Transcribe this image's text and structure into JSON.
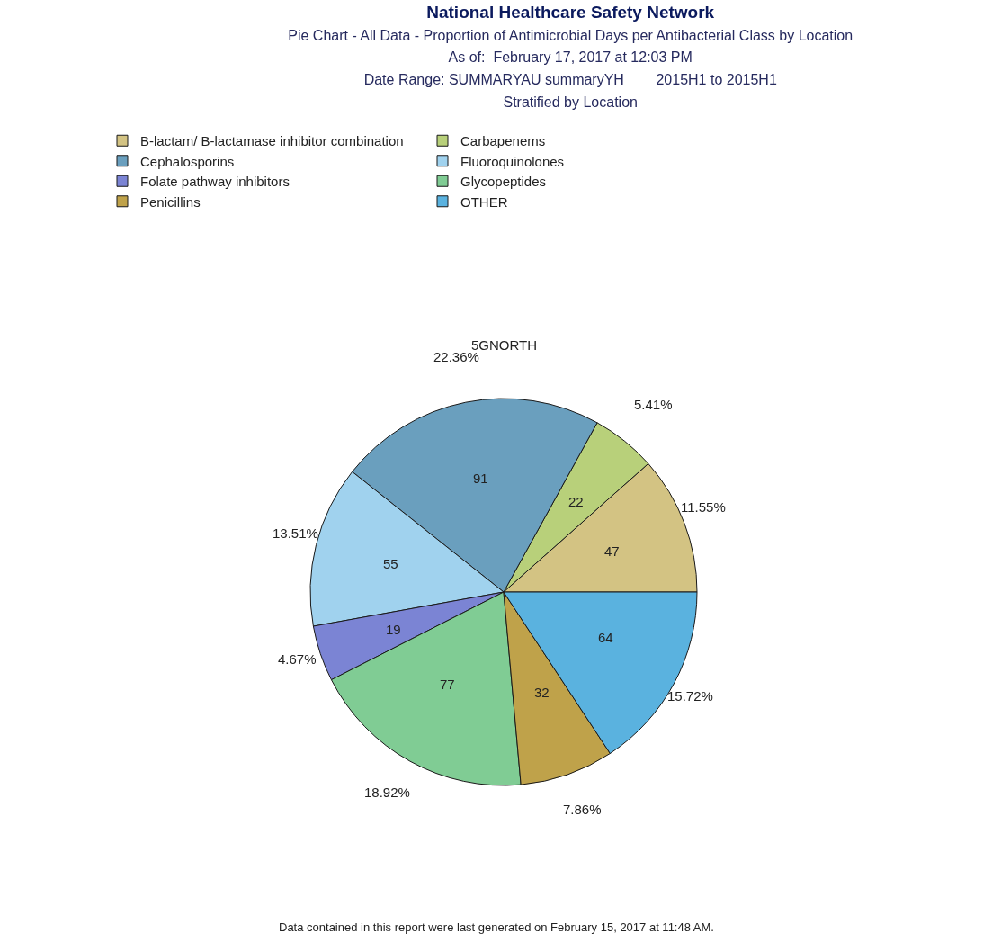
{
  "chart_data": {
    "type": "pie",
    "title": "National Healthcare Safety Network",
    "subtitle": "Pie Chart - All Data - Proportion of Antimicrobial Days per Antibacterial Class by Location\nAs of:  February 17, 2017 at 12:03 PM\nDate Range: SUMMARYAU summaryYH        2015H1 to 2015H1\nStratified by Location",
    "categories": [
      "B-lactam/ B-lactamase inhibitor combination",
      "Carbapenems",
      "Cephalosporins",
      "Fluoroquinolones",
      "Folate pathway inhibitors",
      "Glycopeptides",
      "Penicillins",
      "OTHER"
    ],
    "values": [
      11.55,
      5.41,
      22.36,
      13.51,
      4.67,
      18.92,
      7.86,
      15.72
    ],
    "colors": [
      "#d3c383",
      "#b8d07a",
      "#6a9fbe",
      "#a0d2ee",
      "#7b84d4",
      "#80cc94",
      "#bfa24a",
      "#5ab2df"
    ],
    "value_labels": [
      "11.55%",
      "5.41%",
      "22.36%",
      "13.51%",
      "4.67%",
      "18.92%",
      "7.86%",
      "15.72%"
    ],
    "legend": "top",
    "annotations": [
      "5GNORTH",
      "Data contained in this report were last generated on February 15, 2017 at 11:48 AM.",
      {
        "text": "47",
        "x": "B-lactam/ B-lactamase inhibitor combination"
      },
      {
        "text": "22",
        "x": "Carbapenems"
      },
      {
        "text": "91",
        "x": "Cephalosporins"
      },
      {
        "text": "55",
        "x": "Fluoroquinolones"
      },
      {
        "text": "19",
        "x": "Folate pathway inhibitors"
      },
      {
        "text": "77",
        "x": "Glycopeptides"
      },
      {
        "text": "32",
        "x": "Penicillins"
      },
      {
        "text": "64",
        "x": "OTHER"
      }
    ]
  }
}
